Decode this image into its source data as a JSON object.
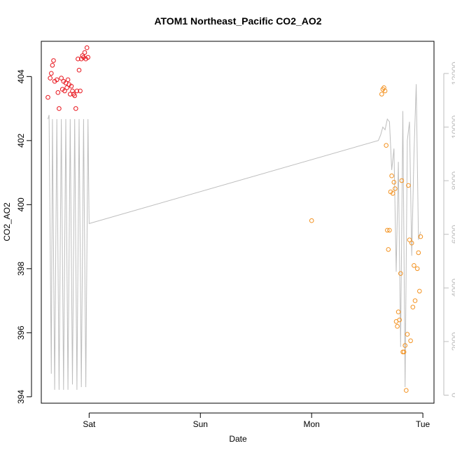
{
  "chart_data": {
    "type": "scatter",
    "title": "ATOM1 Northeast_Pacific CO2_AO2",
    "xlabel": "Date",
    "ylabel": "CO2_AO2",
    "x_ticks": [
      {
        "label": "Sat",
        "value": 1.0
      },
      {
        "label": "Sun",
        "value": 2.0
      },
      {
        "label": "Mon",
        "value": 3.0
      },
      {
        "label": "Tue",
        "value": 4.0
      }
    ],
    "xlim": [
      0.57,
      4.1
    ],
    "ylim": [
      393.8,
      405.1
    ],
    "y_ticks": [
      394,
      396,
      398,
      400,
      402,
      404
    ],
    "y2_ticks": [
      0,
      2000,
      4000,
      6000,
      8000,
      10000,
      12000
    ],
    "y2lim": [
      -300,
      13200
    ],
    "colors": {
      "series1": "#e8141c",
      "series2": "#f39220",
      "line": "#bebebe",
      "axis": "#000000",
      "axis_right": "#bebebe"
    },
    "series": [
      {
        "color_key": "series1",
        "x": [
          0.63,
          0.65,
          0.66,
          0.67,
          0.68,
          0.69,
          0.71,
          0.72,
          0.73,
          0.75,
          0.76,
          0.77,
          0.78,
          0.79,
          0.8,
          0.81,
          0.82,
          0.83,
          0.84,
          0.85,
          0.86,
          0.87,
          0.88,
          0.89,
          0.9,
          0.91,
          0.92,
          0.93,
          0.94,
          0.95,
          0.96,
          0.97,
          0.98,
          0.99
        ],
        "y": [
          403.35,
          403.95,
          404.1,
          404.35,
          404.5,
          403.85,
          403.9,
          403.5,
          403.0,
          403.95,
          403.6,
          403.85,
          403.55,
          403.8,
          403.65,
          403.9,
          403.75,
          403.45,
          403.7,
          403.55,
          403.45,
          403.4,
          403.0,
          403.55,
          404.55,
          404.2,
          403.55,
          404.55,
          404.65,
          404.6,
          404.75,
          404.55,
          404.9,
          404.6
        ]
      },
      {
        "color_key": "series2",
        "x": [
          3.0,
          3.63,
          3.64,
          3.65,
          3.66,
          3.67,
          3.68,
          3.69,
          3.7,
          3.71,
          3.72,
          3.73,
          3.74,
          3.75,
          3.76,
          3.77,
          3.78,
          3.79,
          3.8,
          3.81,
          3.82,
          3.83,
          3.84,
          3.85,
          3.86,
          3.87,
          3.88,
          3.89,
          3.9,
          3.91,
          3.92,
          3.93,
          3.95,
          3.96,
          3.97,
          3.98
        ],
        "y": [
          399.5,
          403.45,
          403.6,
          403.65,
          403.55,
          401.85,
          399.2,
          398.6,
          399.2,
          400.4,
          400.9,
          400.35,
          400.7,
          400.5,
          396.35,
          396.2,
          396.65,
          396.4,
          397.85,
          400.75,
          395.4,
          395.4,
          395.6,
          394.2,
          395.95,
          400.6,
          398.9,
          395.75,
          398.8,
          396.8,
          398.1,
          397.0,
          398.0,
          398.5,
          397.3,
          399.0
        ]
      }
    ],
    "line_series": {
      "color_key": "line",
      "axis": "right",
      "x": [
        0.63,
        0.64,
        0.66,
        0.67,
        0.69,
        0.71,
        0.73,
        0.75,
        0.77,
        0.79,
        0.81,
        0.83,
        0.85,
        0.87,
        0.89,
        0.91,
        0.93,
        0.95,
        0.97,
        0.99,
        1.0,
        3.6,
        3.62,
        3.64,
        3.66,
        3.68,
        3.7,
        3.72,
        3.74,
        3.76,
        3.78,
        3.8,
        3.82,
        3.84,
        3.86,
        3.88,
        3.9,
        3.92,
        3.94,
        3.96,
        3.98
      ],
      "y": [
        10300,
        10450,
        800,
        10300,
        200,
        10300,
        200,
        10300,
        200,
        10300,
        200,
        10300,
        400,
        10300,
        200,
        10300,
        300,
        10300,
        300,
        10300,
        6400,
        9500,
        9700,
        10000,
        9900,
        10300,
        10200,
        8400,
        9200,
        4600,
        8700,
        1800,
        10600,
        300,
        9500,
        10200,
        5200,
        9000,
        11600,
        5800,
        6100
      ]
    }
  }
}
